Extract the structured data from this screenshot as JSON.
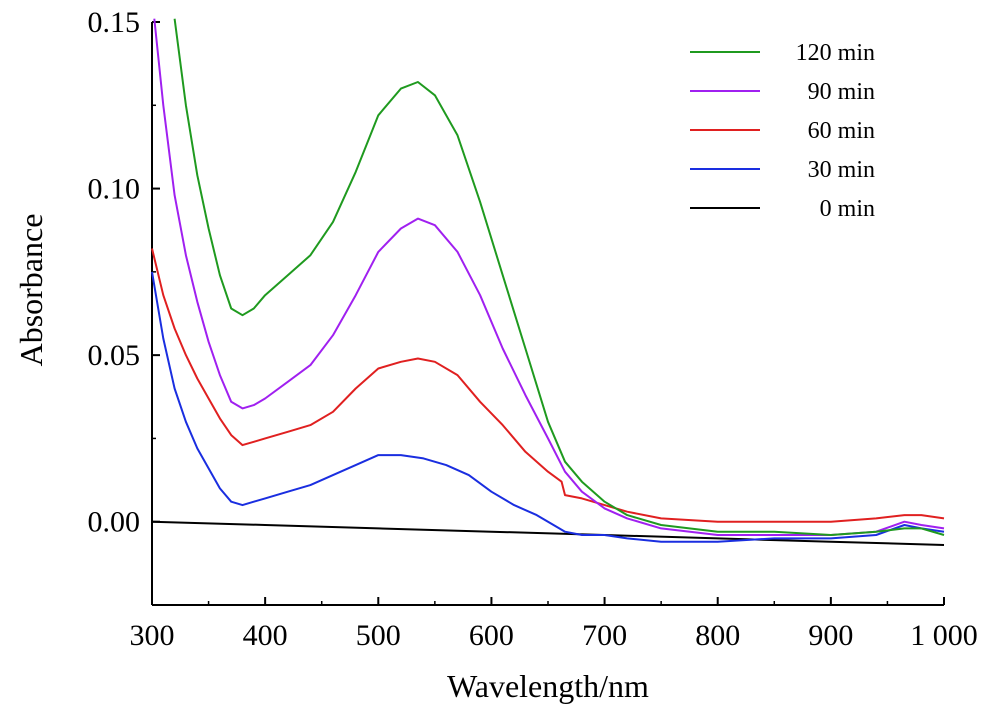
{
  "chart_data": {
    "type": "line",
    "xlabel": "Wavelength/nm",
    "ylabel": "Absorbance",
    "xlim": [
      300,
      1000
    ],
    "ylim": [
      -0.025,
      0.15
    ],
    "x_ticks": [
      300,
      400,
      500,
      600,
      700,
      800,
      900,
      1000
    ],
    "x_tick_labels": [
      "300",
      "400",
      "500",
      "600",
      "700",
      "800",
      "900",
      "1 000"
    ],
    "y_ticks": [
      0.0,
      0.05,
      0.1,
      0.15
    ],
    "y_tick_labels": [
      "0.00",
      "0.05",
      "0.10",
      "0.15"
    ],
    "grid": false,
    "legend_position": "top-right",
    "series": [
      {
        "name": "120 min",
        "color": "#1f9a1f",
        "points": [
          [
            320,
            0.151
          ],
          [
            330,
            0.125
          ],
          [
            340,
            0.104
          ],
          [
            350,
            0.088
          ],
          [
            360,
            0.074
          ],
          [
            370,
            0.064
          ],
          [
            380,
            0.062
          ],
          [
            390,
            0.064
          ],
          [
            400,
            0.068
          ],
          [
            420,
            0.074
          ],
          [
            440,
            0.08
          ],
          [
            460,
            0.09
          ],
          [
            480,
            0.105
          ],
          [
            500,
            0.122
          ],
          [
            520,
            0.13
          ],
          [
            535,
            0.132
          ],
          [
            550,
            0.128
          ],
          [
            570,
            0.116
          ],
          [
            590,
            0.096
          ],
          [
            610,
            0.074
          ],
          [
            630,
            0.052
          ],
          [
            650,
            0.03
          ],
          [
            665,
            0.018
          ],
          [
            680,
            0.012
          ],
          [
            700,
            0.006
          ],
          [
            720,
            0.002
          ],
          [
            750,
            -0.001
          ],
          [
            800,
            -0.003
          ],
          [
            850,
            -0.003
          ],
          [
            900,
            -0.004
          ],
          [
            940,
            -0.003
          ],
          [
            965,
            -0.002
          ],
          [
            980,
            -0.002
          ],
          [
            1000,
            -0.004
          ]
        ]
      },
      {
        "name": "90 min",
        "color": "#a020f0",
        "points": [
          [
            302,
            0.151
          ],
          [
            310,
            0.125
          ],
          [
            320,
            0.098
          ],
          [
            330,
            0.08
          ],
          [
            340,
            0.066
          ],
          [
            350,
            0.054
          ],
          [
            360,
            0.044
          ],
          [
            370,
            0.036
          ],
          [
            380,
            0.034
          ],
          [
            390,
            0.035
          ],
          [
            400,
            0.037
          ],
          [
            420,
            0.042
          ],
          [
            440,
            0.047
          ],
          [
            460,
            0.056
          ],
          [
            480,
            0.068
          ],
          [
            500,
            0.081
          ],
          [
            520,
            0.088
          ],
          [
            535,
            0.091
          ],
          [
            550,
            0.089
          ],
          [
            570,
            0.081
          ],
          [
            590,
            0.068
          ],
          [
            610,
            0.052
          ],
          [
            630,
            0.038
          ],
          [
            650,
            0.025
          ],
          [
            665,
            0.015
          ],
          [
            680,
            0.009
          ],
          [
            700,
            0.004
          ],
          [
            720,
            0.001
          ],
          [
            750,
            -0.002
          ],
          [
            800,
            -0.004
          ],
          [
            850,
            -0.004
          ],
          [
            900,
            -0.004
          ],
          [
            940,
            -0.003
          ],
          [
            965,
            0.0
          ],
          [
            980,
            -0.001
          ],
          [
            1000,
            -0.002
          ]
        ]
      },
      {
        "name": "60 min",
        "color": "#e02020",
        "points": [
          [
            300,
            0.082
          ],
          [
            310,
            0.068
          ],
          [
            320,
            0.058
          ],
          [
            330,
            0.05
          ],
          [
            340,
            0.043
          ],
          [
            350,
            0.037
          ],
          [
            360,
            0.031
          ],
          [
            370,
            0.026
          ],
          [
            380,
            0.023
          ],
          [
            390,
            0.024
          ],
          [
            400,
            0.025
          ],
          [
            420,
            0.027
          ],
          [
            440,
            0.029
          ],
          [
            460,
            0.033
          ],
          [
            480,
            0.04
          ],
          [
            500,
            0.046
          ],
          [
            520,
            0.048
          ],
          [
            535,
            0.049
          ],
          [
            550,
            0.048
          ],
          [
            570,
            0.044
          ],
          [
            590,
            0.036
          ],
          [
            610,
            0.029
          ],
          [
            630,
            0.021
          ],
          [
            650,
            0.015
          ],
          [
            662,
            0.012
          ],
          [
            665,
            0.008
          ],
          [
            680,
            0.007
          ],
          [
            700,
            0.005
          ],
          [
            720,
            0.003
          ],
          [
            750,
            0.001
          ],
          [
            800,
            0.0
          ],
          [
            850,
            0.0
          ],
          [
            900,
            0.0
          ],
          [
            940,
            0.001
          ],
          [
            965,
            0.002
          ],
          [
            980,
            0.002
          ],
          [
            1000,
            0.001
          ]
        ]
      },
      {
        "name": "30 min",
        "color": "#1a2ee0",
        "points": [
          [
            300,
            0.075
          ],
          [
            310,
            0.055
          ],
          [
            320,
            0.04
          ],
          [
            330,
            0.03
          ],
          [
            340,
            0.022
          ],
          [
            350,
            0.016
          ],
          [
            360,
            0.01
          ],
          [
            370,
            0.006
          ],
          [
            380,
            0.005
          ],
          [
            390,
            0.006
          ],
          [
            400,
            0.007
          ],
          [
            420,
            0.009
          ],
          [
            440,
            0.011
          ],
          [
            460,
            0.014
          ],
          [
            480,
            0.017
          ],
          [
            500,
            0.02
          ],
          [
            520,
            0.02
          ],
          [
            540,
            0.019
          ],
          [
            560,
            0.017
          ],
          [
            580,
            0.014
          ],
          [
            600,
            0.009
          ],
          [
            620,
            0.005
          ],
          [
            640,
            0.002
          ],
          [
            660,
            -0.002
          ],
          [
            665,
            -0.003
          ],
          [
            680,
            -0.004
          ],
          [
            700,
            -0.004
          ],
          [
            720,
            -0.005
          ],
          [
            750,
            -0.006
          ],
          [
            800,
            -0.006
          ],
          [
            850,
            -0.005
          ],
          [
            900,
            -0.005
          ],
          [
            940,
            -0.004
          ],
          [
            965,
            -0.001
          ],
          [
            980,
            -0.002
          ],
          [
            1000,
            -0.003
          ]
        ]
      },
      {
        "name": "0 min",
        "color": "#000000",
        "points": [
          [
            300,
            0.0
          ],
          [
            400,
            -0.001
          ],
          [
            500,
            -0.002
          ],
          [
            600,
            -0.003
          ],
          [
            700,
            -0.004
          ],
          [
            800,
            -0.005
          ],
          [
            900,
            -0.006
          ],
          [
            1000,
            -0.007
          ]
        ]
      }
    ]
  }
}
